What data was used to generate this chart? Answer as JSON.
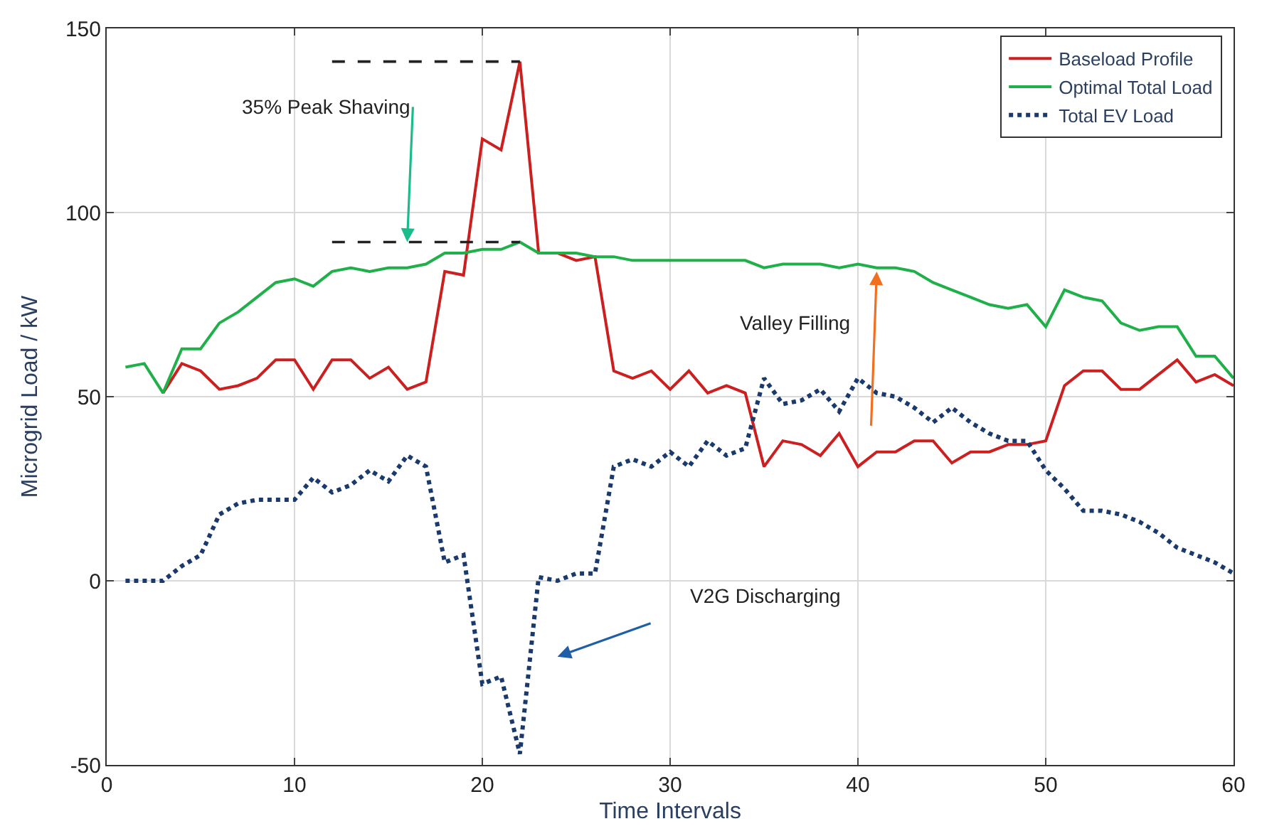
{
  "chart_data": {
    "type": "line",
    "xlabel": "Time Intervals",
    "ylabel": "Microgrid Load / kW",
    "xlim": [
      0,
      60
    ],
    "xticks": [
      0,
      10,
      20,
      30,
      40,
      50,
      60
    ],
    "ylim": [
      -50,
      150
    ],
    "yticks": [
      -50,
      0,
      50,
      100,
      150
    ],
    "grid": true,
    "legend": "top right",
    "marker": "none",
    "x": [
      1,
      2,
      3,
      4,
      5,
      6,
      7,
      8,
      9,
      10,
      11,
      12,
      13,
      14,
      15,
      16,
      17,
      18,
      19,
      20,
      21,
      22,
      23,
      24,
      25,
      26,
      27,
      28,
      29,
      30,
      31,
      32,
      33,
      34,
      35,
      36,
      37,
      38,
      39,
      40,
      41,
      42,
      43,
      44,
      45,
      46,
      47,
      48,
      49,
      50,
      51,
      52,
      53,
      54,
      55,
      56,
      57,
      58,
      59,
      60
    ],
    "series": [
      {
        "name": "Baseload Profile",
        "color": "#cc1f1f",
        "line_style": "solid",
        "values": [
          null,
          null,
          51,
          59,
          57,
          52,
          53,
          55,
          60,
          60,
          52,
          60,
          60,
          55,
          58,
          52,
          54,
          84,
          83,
          120,
          117,
          141,
          89,
          89,
          87,
          88,
          57,
          55,
          57,
          52,
          57,
          51,
          53,
          51,
          31,
          38,
          37,
          34,
          40,
          31,
          35,
          35,
          38,
          38,
          32,
          35,
          35,
          37,
          37,
          38,
          53,
          57,
          57,
          52,
          52,
          56,
          60,
          54,
          56,
          53
        ]
      },
      {
        "name": "Optimal Total Load",
        "color": "#1fb04a",
        "line_style": "solid",
        "values": [
          58,
          59,
          51,
          63,
          63,
          70,
          73,
          77,
          81,
          82,
          80,
          84,
          85,
          84,
          85,
          85,
          86,
          89,
          89,
          90,
          90,
          92,
          89,
          89,
          89,
          88,
          88,
          87,
          87,
          87,
          87,
          87,
          87,
          87,
          85,
          86,
          86,
          86,
          85,
          86,
          85,
          85,
          84,
          81,
          79,
          77,
          75,
          74,
          75,
          69,
          79,
          77,
          76,
          70,
          68,
          69,
          69,
          61,
          61,
          55
        ]
      },
      {
        "name": "Total EV Load",
        "color": "#1a3a6e",
        "line_style": "dotted",
        "values": [
          0,
          0,
          0,
          4,
          7,
          18,
          21,
          22,
          22,
          22,
          28,
          24,
          26,
          30,
          27,
          34,
          31,
          5,
          7,
          -28,
          -26,
          -47,
          1,
          0,
          2,
          2,
          31,
          33,
          31,
          35,
          31,
          38,
          34,
          36,
          55,
          48,
          49,
          52,
          46,
          55,
          51,
          50,
          47,
          43,
          47,
          43,
          40,
          38,
          38,
          30,
          25,
          19,
          19,
          18,
          16,
          13,
          9,
          7,
          5,
          2
        ]
      },
      {
        "color": "#222222",
        "line_style": "dashed",
        "values": [
          null,
          null,
          null,
          null,
          null,
          null,
          null,
          null,
          null,
          null,
          null,
          141,
          141,
          141,
          141,
          141,
          141,
          141,
          141,
          141,
          141,
          141,
          null,
          null,
          null,
          null,
          null,
          null,
          null,
          null,
          null,
          null,
          null,
          null,
          null,
          null,
          null,
          null,
          null,
          null,
          null,
          null,
          null,
          null,
          null,
          null,
          null,
          null,
          null,
          null,
          null,
          null,
          null,
          null,
          null,
          null,
          null,
          null,
          null,
          null
        ]
      },
      {
        "color": "#222222",
        "line_style": "dashed",
        "values": [
          null,
          null,
          null,
          null,
          null,
          null,
          null,
          null,
          null,
          null,
          null,
          92,
          92,
          92,
          92,
          92,
          92,
          92,
          92,
          92,
          92,
          92,
          null,
          null,
          null,
          null,
          null,
          null,
          null,
          null,
          null,
          null,
          null,
          null,
          null,
          null,
          null,
          null,
          null,
          null,
          null,
          null,
          null,
          null,
          null,
          null,
          null,
          null,
          null,
          null,
          null,
          null,
          null,
          null,
          null,
          null,
          null,
          null,
          null,
          null
        ]
      }
    ],
    "annotations": [
      {
        "text": "35% Peak Shaving",
        "x": 16,
        "y": 92
      },
      {
        "text": "Valley Filling",
        "x": 41,
        "y": 84
      },
      "V2G Discharging"
    ]
  }
}
